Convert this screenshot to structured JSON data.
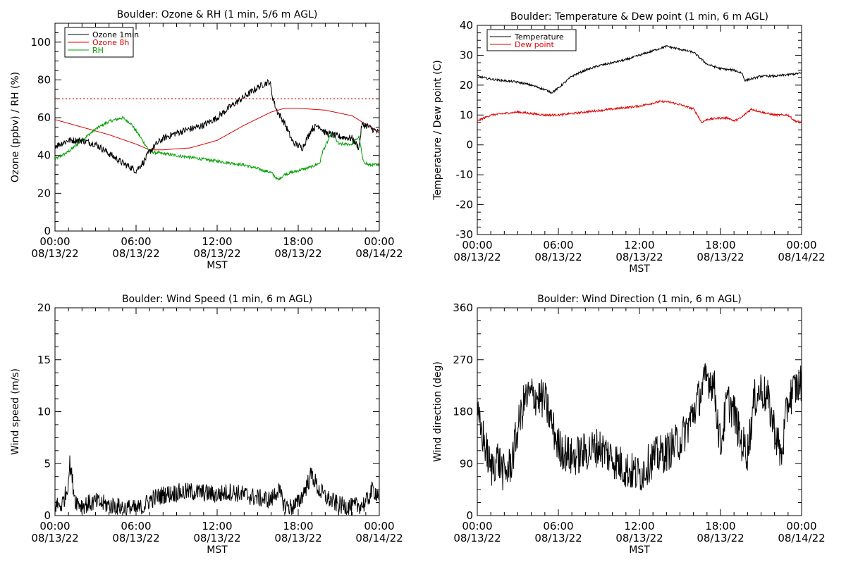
{
  "chart_data": [
    {
      "type": "line",
      "title": "Boulder: Ozone & RH (1 min, 5/6 m AGL)",
      "xlabel": "MST",
      "ylabel": "Ozone (ppbv) / RH (%)",
      "ylim": [
        0,
        110
      ],
      "yticks": [
        0,
        20,
        40,
        60,
        80,
        100
      ],
      "xticks": [
        "00:00\n08/13/22",
        "06:00\n08/13/22",
        "12:00\n08/13/22",
        "18:00\n08/13/22",
        "00:00\n08/14/22"
      ],
      "xlim_hours": [
        0,
        24
      ],
      "legend": "top-left",
      "reference_line": {
        "y": 70,
        "color": "#e00000",
        "style": "dotted"
      },
      "series": [
        {
          "name": "Ozone 1min",
          "color": "#000000",
          "noise": 1.8,
          "x": [
            0,
            1,
            2,
            3,
            4,
            5,
            6,
            6.6,
            7,
            7.5,
            8,
            9,
            10,
            11,
            12,
            13,
            14,
            15,
            15.5,
            15.9,
            16.1,
            16.4,
            17,
            17.6,
            18.3,
            19,
            19.5,
            20,
            21,
            22,
            22.5,
            22.7,
            23,
            23.5,
            24
          ],
          "y": [
            45,
            48,
            48,
            46,
            41,
            36,
            32,
            37,
            42,
            46,
            49,
            52,
            54,
            56,
            60,
            66,
            71,
            76,
            78,
            79,
            71,
            64,
            57,
            47,
            44,
            54,
            56,
            52,
            50,
            49,
            44,
            56,
            56,
            54,
            52
          ]
        },
        {
          "name": "Ozone 8h",
          "color": "#e00000",
          "noise": 0,
          "x": [
            0,
            2,
            4,
            6,
            7,
            8,
            10,
            12,
            14,
            16,
            17,
            18,
            20,
            22,
            24
          ],
          "y": [
            59,
            55,
            51,
            46,
            43,
            43,
            44,
            48,
            56,
            63,
            65,
            65,
            64,
            61,
            52
          ]
        },
        {
          "name": "RH",
          "color": "#00a000",
          "noise": 0.8,
          "x": [
            0,
            1,
            2,
            3,
            4,
            5,
            5.6,
            6.3,
            7,
            8,
            10,
            12,
            14,
            16,
            16.5,
            17,
            18,
            19,
            19.6,
            19.8,
            20.5,
            21,
            22,
            22.5,
            22.8,
            23.2,
            24
          ],
          "y": [
            38,
            42,
            48,
            54,
            58,
            60,
            57,
            50,
            42,
            41,
            39,
            37,
            35,
            31,
            27,
            30,
            32,
            34,
            36,
            42,
            52,
            46,
            46,
            50,
            37,
            35,
            35
          ]
        }
      ]
    },
    {
      "type": "line",
      "title": "Boulder: Temperature & Dew point (1 min, 6 m AGL)",
      "xlabel": "MST",
      "ylabel": "Temperature / Dew point (C)",
      "ylim": [
        -30,
        40
      ],
      "yticks": [
        -30,
        -20,
        -10,
        0,
        10,
        20,
        30,
        40
      ],
      "xticks": [
        "00:00\n08/13/22",
        "06:00\n08/13/22",
        "12:00\n08/13/22",
        "18:00\n08/13/22",
        "00:00\n08/14/22"
      ],
      "xlim_hours": [
        0,
        24
      ],
      "legend": "top-left",
      "series": [
        {
          "name": "Temperature",
          "color": "#000000",
          "noise": 0.35,
          "x": [
            0,
            1,
            2,
            3,
            4,
            5,
            5.5,
            6,
            7,
            8,
            9,
            10,
            11,
            12,
            13,
            14,
            15,
            16,
            17,
            18,
            19,
            19.6,
            19.8,
            20.2,
            21,
            22,
            23,
            24
          ],
          "y": [
            23,
            22,
            21.5,
            21,
            20,
            18.5,
            17.5,
            19,
            23,
            25,
            26.5,
            27.5,
            28.5,
            30,
            31.5,
            33,
            32,
            31,
            27,
            25.5,
            25,
            24,
            21.5,
            22,
            23,
            23,
            23.5,
            24
          ]
        },
        {
          "name": "Dew point",
          "color": "#e00000",
          "noise": 0.35,
          "x": [
            0,
            1,
            2,
            3,
            4,
            5,
            6,
            7,
            8,
            9,
            10,
            11,
            12,
            13,
            13.5,
            14,
            15,
            16,
            16.3,
            16.6,
            17,
            18,
            18.6,
            19,
            19.5,
            20,
            20.3,
            21,
            22,
            23,
            23.5,
            24
          ],
          "y": [
            8,
            10,
            10.5,
            11,
            10.5,
            10,
            10,
            10.5,
            11,
            11.5,
            12,
            12.5,
            13,
            14,
            14.5,
            14.5,
            13.5,
            12,
            10,
            7.5,
            8.5,
            9,
            9,
            8,
            9,
            11,
            12,
            11,
            10,
            10,
            8,
            7.5
          ]
        }
      ]
    },
    {
      "type": "line",
      "title": "Boulder: Wind Speed (1 min, 6 m AGL)",
      "xlabel": "MST",
      "ylabel": "Wind speed (m/s)",
      "ylim": [
        0,
        20
      ],
      "yticks": [
        0,
        5,
        10,
        15,
        20
      ],
      "xticks": [
        "00:00\n08/13/22",
        "06:00\n08/13/22",
        "12:00\n08/13/22",
        "18:00\n08/13/22",
        "00:00\n08/14/22"
      ],
      "xlim_hours": [
        0,
        24
      ],
      "series": [
        {
          "name": "",
          "color": "#000000",
          "noise": 0.9,
          "x": [
            0,
            0.5,
            0.9,
            1.1,
            1.5,
            2,
            3,
            4,
            5,
            6,
            6.5,
            7,
            8,
            9,
            10,
            11,
            12,
            13,
            14,
            15,
            16,
            16.5,
            17,
            17.5,
            18,
            18.5,
            19,
            19.5,
            20,
            21,
            22,
            23,
            23.5,
            24
          ],
          "y": [
            1,
            1,
            2.5,
            5,
            1.5,
            1,
            1.3,
            1,
            0.8,
            0.6,
            0.8,
            1.5,
            2,
            2.2,
            2.3,
            2.2,
            2,
            2.3,
            2,
            1.7,
            1.5,
            2.5,
            1,
            0.8,
            1.2,
            2.5,
            4,
            2.5,
            1.8,
            1,
            0.8,
            1.2,
            2.5,
            2
          ]
        }
      ]
    },
    {
      "type": "line",
      "title": "Boulder: Wind Direction (1 min, 6 m AGL)",
      "xlabel": "MST",
      "ylabel": "Wind direction (deg)",
      "ylim": [
        0,
        360
      ],
      "yticks": [
        0,
        90,
        180,
        270,
        360
      ],
      "xticks": [
        "00:00\n08/13/22",
        "06:00\n08/13/22",
        "12:00\n08/13/22",
        "18:00\n08/13/22",
        "00:00\n08/14/22"
      ],
      "xlim_hours": [
        0,
        24
      ],
      "series": [
        {
          "name": "",
          "color": "#000000",
          "noise": 35,
          "x": [
            0,
            0.5,
            1,
            1.5,
            2,
            2.5,
            3,
            3.5,
            4,
            5,
            5.5,
            6,
            7,
            8,
            9,
            10,
            11,
            12,
            13,
            14,
            15,
            15.5,
            16,
            16.5,
            17,
            17.5,
            18,
            18.5,
            19,
            19.5,
            20,
            20.5,
            21,
            21.5,
            22,
            22.5,
            23,
            23.5,
            24
          ],
          "y": [
            170,
            130,
            80,
            100,
            70,
            90,
            150,
            200,
            210,
            200,
            160,
            120,
            100,
            110,
            120,
            100,
            80,
            70,
            100,
            110,
            130,
            150,
            180,
            210,
            240,
            230,
            120,
            200,
            180,
            130,
            110,
            200,
            220,
            200,
            150,
            100,
            200,
            220,
            230
          ]
        }
      ]
    }
  ]
}
